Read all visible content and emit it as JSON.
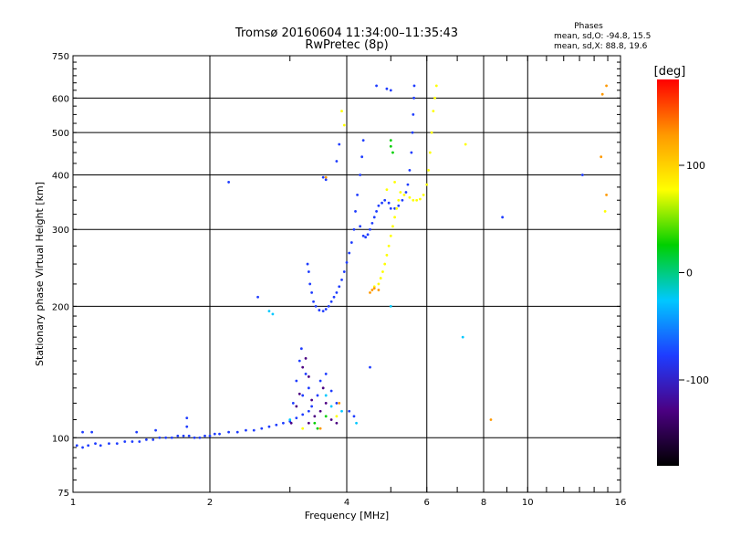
{
  "chart_data": {
    "type": "scatter",
    "title": "Tromsø 20160604 11:34:00–11:35:43",
    "subtitle": "RwPretec (8p)",
    "xlabel": "Frequency [MHz]",
    "ylabel": "Stationary phase Virtual Height [km]",
    "x_scale": "log",
    "y_scale": "log",
    "xlim": [
      1,
      16
    ],
    "ylim": [
      75,
      750
    ],
    "x_ticks": [
      1,
      2,
      4,
      6,
      8,
      10,
      16
    ],
    "y_ticks": [
      75,
      100,
      200,
      300,
      400,
      500,
      600,
      750
    ],
    "grid": true,
    "phase_stats": {
      "title": "Phases",
      "line_o": "mean, sd,O: -94.8, 15.5",
      "line_x": "mean, sd,X:  88.8, 19.6"
    },
    "colorbar": {
      "unit": "[deg]",
      "range": [
        -180,
        180
      ],
      "ticks": [
        100,
        0,
        -100
      ],
      "colors": [
        "#000000",
        "#4b0082",
        "#1e3cff",
        "#00c8ff",
        "#00d000",
        "#ffff00",
        "#ff9900",
        "#ff0000"
      ]
    },
    "series": [
      {
        "color": "#1e3cff",
        "points": [
          [
            1.02,
            96
          ],
          [
            1.05,
            95
          ],
          [
            1.08,
            96
          ],
          [
            1.12,
            97
          ],
          [
            1.15,
            96
          ],
          [
            1.2,
            97
          ],
          [
            1.25,
            97
          ],
          [
            1.3,
            98
          ],
          [
            1.35,
            98
          ],
          [
            1.4,
            98
          ],
          [
            1.45,
            99
          ],
          [
            1.5,
            99
          ],
          [
            1.55,
            100
          ],
          [
            1.6,
            100
          ],
          [
            1.65,
            100
          ],
          [
            1.7,
            101
          ],
          [
            1.75,
            101
          ],
          [
            1.8,
            101
          ],
          [
            1.85,
            100
          ],
          [
            1.9,
            100
          ],
          [
            1.95,
            101
          ],
          [
            2.0,
            101
          ],
          [
            2.05,
            102
          ],
          [
            2.1,
            102
          ],
          [
            2.2,
            103
          ],
          [
            2.3,
            103
          ],
          [
            2.4,
            104
          ],
          [
            2.5,
            104
          ],
          [
            2.6,
            105
          ],
          [
            2.7,
            106
          ],
          [
            2.8,
            107
          ],
          [
            2.9,
            108
          ],
          [
            3.0,
            109
          ],
          [
            3.1,
            111
          ],
          [
            3.2,
            113
          ],
          [
            3.3,
            115
          ],
          [
            1.05,
            103
          ],
          [
            1.1,
            103
          ],
          [
            1.38,
            103
          ],
          [
            1.52,
            104
          ],
          [
            1.78,
            106
          ],
          [
            1.78,
            111
          ],
          [
            3.28,
            250
          ],
          [
            3.3,
            240
          ],
          [
            3.32,
            225
          ],
          [
            3.35,
            215
          ],
          [
            3.38,
            205
          ],
          [
            3.42,
            200
          ],
          [
            3.48,
            196
          ],
          [
            3.55,
            195
          ],
          [
            3.6,
            197
          ],
          [
            3.65,
            200
          ],
          [
            3.7,
            205
          ],
          [
            3.75,
            210
          ],
          [
            3.8,
            215
          ],
          [
            3.85,
            222
          ],
          [
            3.9,
            230
          ],
          [
            3.95,
            240
          ],
          [
            4.0,
            252
          ],
          [
            4.05,
            265
          ],
          [
            4.1,
            280
          ],
          [
            4.15,
            300
          ],
          [
            4.18,
            330
          ],
          [
            4.22,
            360
          ],
          [
            4.28,
            400
          ],
          [
            4.32,
            440
          ],
          [
            4.35,
            480
          ],
          [
            4.28,
            305
          ],
          [
            4.35,
            290
          ],
          [
            4.4,
            288
          ],
          [
            4.45,
            292
          ],
          [
            4.5,
            300
          ],
          [
            4.55,
            310
          ],
          [
            4.6,
            320
          ],
          [
            4.65,
            330
          ],
          [
            4.7,
            340
          ],
          [
            4.78,
            345
          ],
          [
            4.85,
            350
          ],
          [
            4.95,
            345
          ],
          [
            5.0,
            335
          ],
          [
            5.1,
            335
          ],
          [
            5.2,
            340
          ],
          [
            5.3,
            350
          ],
          [
            5.4,
            365
          ],
          [
            5.45,
            380
          ],
          [
            5.5,
            410
          ],
          [
            5.55,
            450
          ],
          [
            5.58,
            500
          ],
          [
            5.6,
            550
          ],
          [
            5.62,
            600
          ],
          [
            5.63,
            640
          ],
          [
            4.65,
            640
          ],
          [
            4.9,
            630
          ],
          [
            5.0,
            625
          ],
          [
            3.55,
            395
          ],
          [
            3.6,
            390
          ],
          [
            3.8,
            430
          ],
          [
            3.85,
            470
          ],
          [
            2.55,
            210
          ],
          [
            3.05,
            120
          ],
          [
            3.1,
            135
          ],
          [
            3.15,
            150
          ],
          [
            3.18,
            160
          ],
          [
            3.2,
            125
          ],
          [
            3.25,
            140
          ],
          [
            3.3,
            130
          ],
          [
            3.35,
            118
          ],
          [
            3.45,
            125
          ],
          [
            3.5,
            135
          ],
          [
            3.6,
            140
          ],
          [
            3.7,
            128
          ],
          [
            3.8,
            120
          ],
          [
            4.05,
            115
          ],
          [
            4.15,
            112
          ],
          [
            4.5,
            145
          ],
          [
            8.8,
            320
          ],
          [
            13.2,
            400
          ],
          [
            2.2,
            385
          ]
        ]
      },
      {
        "color": "#4b0082",
        "points": [
          [
            3.02,
            108
          ],
          [
            3.1,
            118
          ],
          [
            3.15,
            126
          ],
          [
            3.2,
            145
          ],
          [
            3.25,
            152
          ],
          [
            3.3,
            138
          ],
          [
            3.35,
            122
          ],
          [
            3.4,
            112
          ],
          [
            3.5,
            115
          ],
          [
            3.55,
            130
          ],
          [
            3.6,
            120
          ],
          [
            3.7,
            110
          ],
          [
            3.8,
            108
          ],
          [
            3.3,
            108
          ]
        ]
      },
      {
        "color": "#00c8ff",
        "points": [
          [
            2.7,
            195
          ],
          [
            2.75,
            192
          ],
          [
            3.0,
            110
          ],
          [
            3.6,
            125
          ],
          [
            3.7,
            118
          ],
          [
            3.9,
            115
          ],
          [
            4.2,
            108
          ],
          [
            5.0,
            200
          ],
          [
            7.2,
            170
          ]
        ]
      },
      {
        "color": "#00d000",
        "points": [
          [
            3.4,
            108
          ],
          [
            3.45,
            105
          ],
          [
            3.6,
            112
          ],
          [
            5.0,
            480
          ],
          [
            5.0,
            465
          ],
          [
            5.05,
            450
          ]
        ]
      },
      {
        "color": "#ffff00",
        "points": [
          [
            3.2,
            105
          ],
          [
            3.8,
            112
          ],
          [
            4.6,
            222
          ],
          [
            4.7,
            225
          ],
          [
            4.75,
            232
          ],
          [
            4.8,
            240
          ],
          [
            4.85,
            250
          ],
          [
            4.9,
            262
          ],
          [
            4.95,
            275
          ],
          [
            5.0,
            290
          ],
          [
            5.05,
            305
          ],
          [
            5.1,
            320
          ],
          [
            5.15,
            335
          ],
          [
            5.2,
            350
          ],
          [
            5.25,
            365
          ],
          [
            5.35,
            360
          ],
          [
            5.5,
            355
          ],
          [
            5.6,
            350
          ],
          [
            5.7,
            350
          ],
          [
            5.8,
            352
          ],
          [
            5.9,
            360
          ],
          [
            6.0,
            380
          ],
          [
            6.05,
            410
          ],
          [
            6.1,
            450
          ],
          [
            6.15,
            500
          ],
          [
            6.2,
            560
          ],
          [
            6.25,
            600
          ],
          [
            6.3,
            640
          ],
          [
            4.9,
            370
          ],
          [
            5.1,
            385
          ],
          [
            3.9,
            560
          ],
          [
            3.95,
            520
          ],
          [
            7.3,
            470
          ],
          [
            14.8,
            330
          ]
        ]
      },
      {
        "color": "#ff9900",
        "points": [
          [
            3.5,
            105
          ],
          [
            3.85,
            120
          ],
          [
            4.5,
            215
          ],
          [
            4.55,
            218
          ],
          [
            4.6,
            220
          ],
          [
            4.7,
            218
          ],
          [
            8.3,
            110
          ],
          [
            14.5,
            440
          ],
          [
            14.9,
            640
          ],
          [
            14.6,
            612
          ],
          [
            14.9,
            360
          ],
          [
            3.6,
            395
          ]
        ]
      }
    ]
  }
}
